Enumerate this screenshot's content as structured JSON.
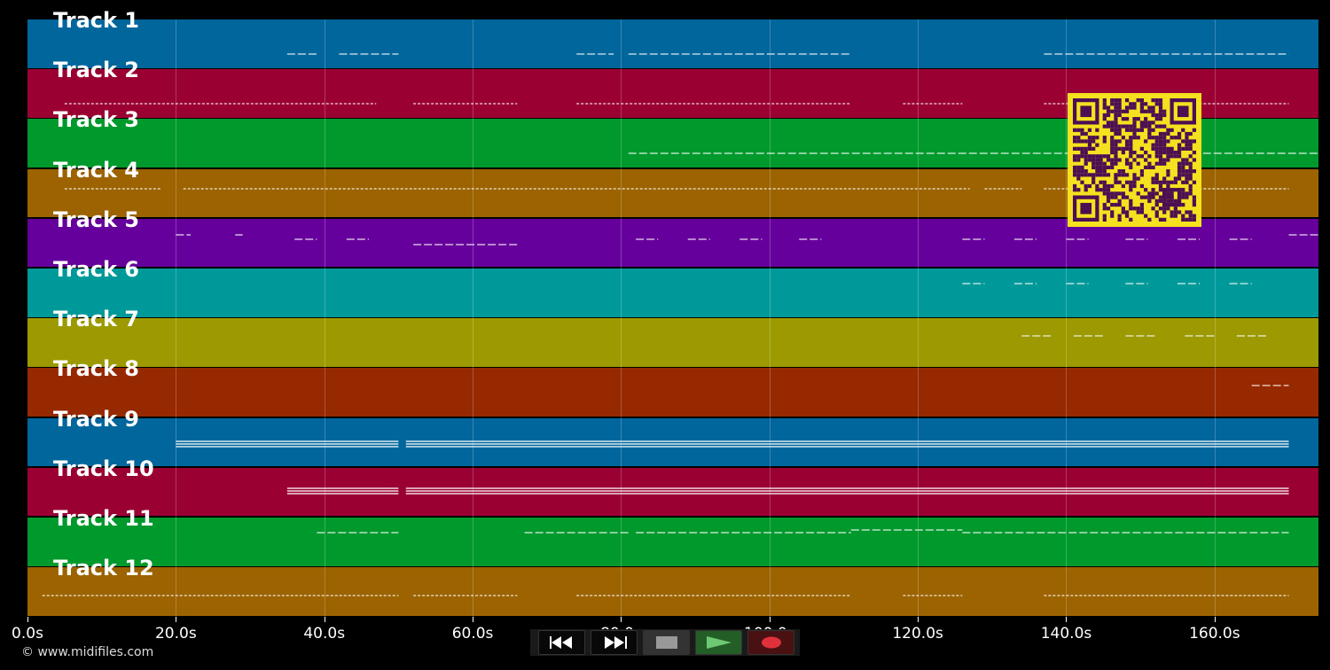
{
  "tracks": [
    {
      "label": "Track 1",
      "color": "#00669c"
    },
    {
      "label": "Track 2",
      "color": "#9b0032"
    },
    {
      "label": "Track 3",
      "color": "#00992c"
    },
    {
      "label": "Track 4",
      "color": "#9c6300"
    },
    {
      "label": "Track 5",
      "color": "#66009c"
    },
    {
      "label": "Track 6",
      "color": "#009999"
    },
    {
      "label": "Track 7",
      "color": "#9c9a00"
    },
    {
      "label": "Track 8",
      "color": "#962900"
    },
    {
      "label": "Track 9",
      "color": "#00669c"
    },
    {
      "label": "Track 10",
      "color": "#9b0032"
    },
    {
      "label": "Track 11",
      "color": "#00992c"
    },
    {
      "label": "Track 12",
      "color": "#9c6300"
    }
  ],
  "timeline": {
    "ticks": [
      "0.0s",
      "20.0s",
      "40.0s",
      "60.0s",
      "80.0s",
      "100.0s",
      "120.0s",
      "140.0s",
      "160.0s"
    ],
    "max_seconds": 174
  },
  "copyright": "© www.midifiles.com",
  "transport": {
    "buttons": [
      {
        "name": "rewind",
        "icon": "rewind-icon"
      },
      {
        "name": "fast-forward",
        "icon": "fast-forward-icon"
      },
      {
        "name": "stop",
        "icon": "stop-icon"
      },
      {
        "name": "play",
        "icon": "play-icon"
      },
      {
        "name": "record",
        "icon": "record-icon"
      }
    ]
  },
  "qr_code": {
    "icon": "qr-code-icon",
    "background": "#f5e11f",
    "foreground": "#4b0f53"
  }
}
